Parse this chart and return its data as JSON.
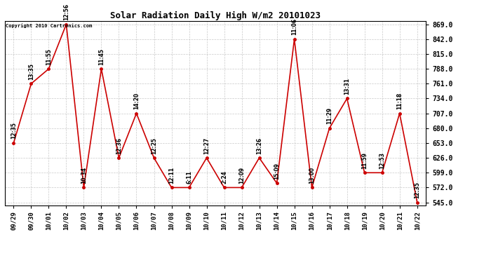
{
  "title": "Solar Radiation Daily High W/m2 20101023",
  "copyright_text": "Copyright 2010 Cartronics.com",
  "dates": [
    "09/29",
    "09/30",
    "10/01",
    "10/02",
    "10/03",
    "10/04",
    "10/05",
    "10/06",
    "10/07",
    "10/08",
    "10/09",
    "10/10",
    "10/11",
    "10/12",
    "10/13",
    "10/14",
    "10/15",
    "10/16",
    "10/17",
    "10/18",
    "10/19",
    "10/20",
    "10/21",
    "10/22"
  ],
  "values": [
    653,
    761,
    788,
    869,
    572,
    788,
    626,
    707,
    626,
    572,
    572,
    626,
    572,
    572,
    626,
    580,
    842,
    572,
    680,
    734,
    599,
    599,
    707,
    545
  ],
  "times": [
    "12:35",
    "13:35",
    "11:55",
    "12:56",
    "10:34",
    "11:45",
    "12:36",
    "14:20",
    "12:25",
    "12:11",
    "6:11",
    "12:27",
    "2:24",
    "12:09",
    "13:26",
    "15:09",
    "11:06",
    "13:00",
    "11:29",
    "13:31",
    "11:59",
    "12:53",
    "11:18",
    "12:35"
  ],
  "ylim_min": 540.0,
  "ylim_max": 875.0,
  "yticks": [
    545.0,
    572.0,
    599.0,
    626.0,
    653.0,
    680.0,
    707.0,
    734.0,
    761.0,
    788.0,
    815.0,
    842.0,
    869.0
  ],
  "line_color": "#cc0000",
  "marker_color": "#cc0000",
  "background_color": "#ffffff",
  "grid_color": "#bbbbbb"
}
